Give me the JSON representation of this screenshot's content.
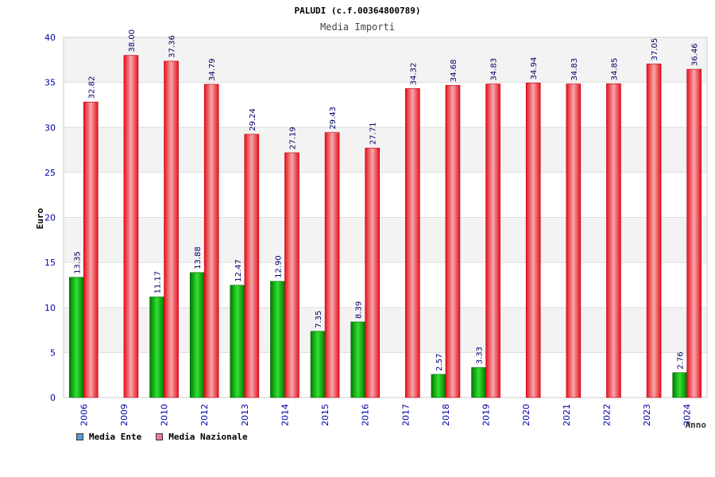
{
  "chart_data": {
    "type": "bar",
    "title": "PALUDI (c.f.00364800789)",
    "subtitle": "Media Importi",
    "xlabel": "Anno",
    "ylabel": "Euro",
    "ylim": [
      0,
      40
    ],
    "yticks": [
      0,
      5,
      10,
      15,
      20,
      25,
      30,
      35,
      40
    ],
    "grid": true,
    "legend_position": "bottom-left",
    "categories": [
      "2006",
      "2009",
      "2010",
      "2012",
      "2013",
      "2014",
      "2015",
      "2016",
      "2017",
      "2018",
      "2019",
      "2020",
      "2021",
      "2022",
      "2023",
      "2024"
    ],
    "series": [
      {
        "name": "Media Ente",
        "color": "#00a000",
        "legend_color": "#5b9bd5",
        "values": [
          13.35,
          null,
          11.17,
          13.88,
          12.47,
          12.9,
          7.35,
          8.39,
          null,
          2.57,
          3.33,
          null,
          null,
          null,
          null,
          2.76
        ],
        "labels": [
          "13.35",
          "",
          "11.17",
          "13.88",
          "12.47",
          "12.90",
          "7.35",
          "8.39",
          "",
          "2.57",
          "3.33",
          "",
          "",
          "",
          "",
          "2.76"
        ]
      },
      {
        "name": "Media Nazionale",
        "color": "#e8101c",
        "legend_color": "#e879a8",
        "values": [
          32.82,
          38.0,
          37.36,
          34.79,
          29.24,
          27.19,
          29.43,
          27.71,
          34.32,
          34.68,
          34.83,
          34.94,
          34.83,
          34.85,
          37.05,
          36.46
        ],
        "labels": [
          "32.82",
          "38.00",
          "37.36",
          "34.79",
          "29.24",
          "27.19",
          "29.43",
          "27.71",
          "34.32",
          "34.68",
          "34.83",
          "34.94",
          "34.83",
          "34.85",
          "37.05",
          "36.46"
        ]
      }
    ]
  }
}
